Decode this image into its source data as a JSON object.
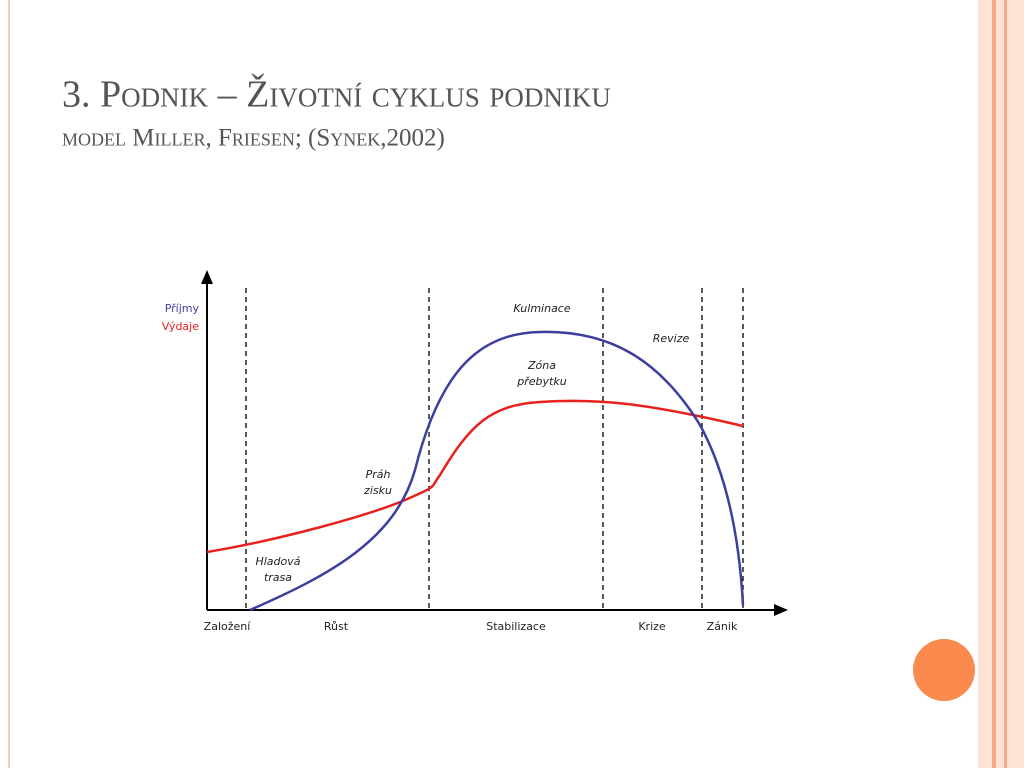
{
  "header": {
    "title": "3. Podnik – Životní cyklus podniku",
    "subtitle": "model Miller, Friesen; (Synek,2002)"
  },
  "diagram": {
    "legend": [
      "Příjmy",
      "Výdaje"
    ],
    "annotations": [
      "Kulminace",
      "Revize",
      "Zóna",
      "přebytku",
      "Práh",
      "zisku",
      "Hladová",
      "trasa"
    ],
    "phases": [
      "Založení",
      "Růst",
      "Stabilizace",
      "Krize",
      "Zánik"
    ]
  }
}
